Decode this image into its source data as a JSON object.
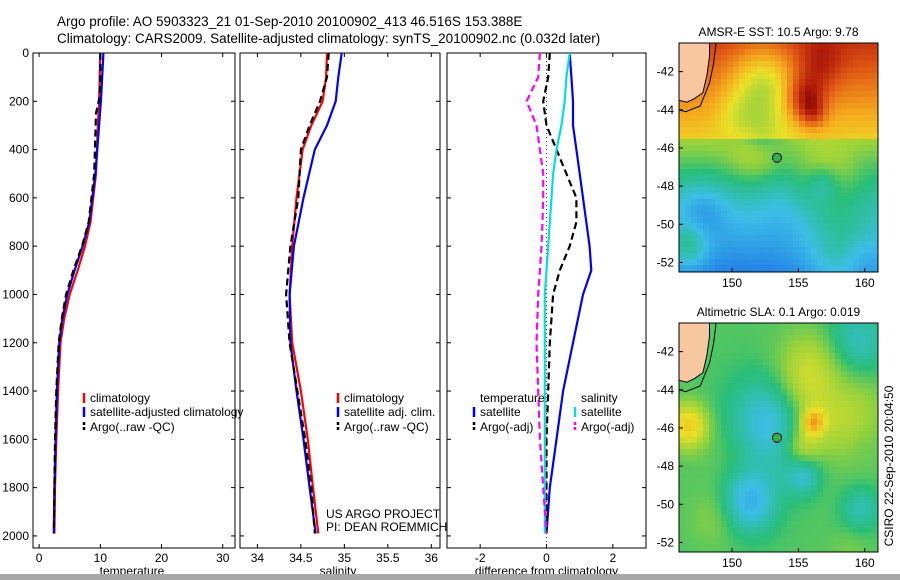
{
  "header": {
    "line1": "Argo profile: AO 5903323_21 01-Sep-2010 20100902_413 46.516S 153.388E",
    "line2": "Climatology: CARS2009. Satellite-adjusted climatology: synTS_20100902.nc (0.032d later)"
  },
  "colors": {
    "climatology": "#ff0000",
    "satellite": "#0000ff",
    "argo": "#000000",
    "salinity_satellite": "#00e0e0",
    "salinity_argo": "#ff00ff",
    "land": "#f7c8a0"
  },
  "chart_data": [
    {
      "type": "line",
      "name": "temperature-panel",
      "xlabel": "temperature",
      "ylabel": "",
      "xlim": [
        -1,
        32
      ],
      "ylim": [
        2050,
        0
      ],
      "xticks": [
        "0",
        "10",
        "20",
        "30"
      ],
      "yticks": [
        "0",
        "200",
        "400",
        "600",
        "800",
        "1000",
        "1200",
        "1400",
        "1600",
        "1800",
        "2000"
      ],
      "legend": [
        "climatology",
        "satellite-adjusted climatology",
        "Argo(..raw -QC)"
      ],
      "series": [
        {
          "name": "climatology",
          "color": "red",
          "dash": "solid",
          "x": [
            10.0,
            9.9,
            9.8,
            9.6,
            9.3,
            8.4,
            7.5,
            6.3,
            5.0,
            4.1,
            3.5,
            3.1,
            2.8,
            2.6,
            2.5
          ],
          "y": [
            0,
            100,
            200,
            300,
            500,
            700,
            800,
            900,
            1000,
            1100,
            1200,
            1400,
            1600,
            1800,
            1990
          ]
        },
        {
          "name": "satellite-adjusted climatology",
          "color": "blue",
          "dash": "solid",
          "x": [
            10.5,
            10.3,
            10.1,
            9.8,
            9.2,
            8.2,
            7.1,
            5.8,
            4.6,
            3.8,
            3.3,
            2.9,
            2.7,
            2.5,
            2.4
          ],
          "y": [
            0,
            100,
            200,
            300,
            500,
            700,
            800,
            900,
            1000,
            1100,
            1200,
            1400,
            1600,
            1800,
            1990
          ]
        },
        {
          "name": "Argo(..raw -QC)",
          "color": "black",
          "dash": "dashed",
          "x": [
            10.0,
            10.0,
            9.9,
            9.3,
            9.0,
            8.1,
            7.0,
            5.6,
            4.4,
            3.7,
            3.2,
            2.8,
            2.6,
            2.5,
            2.4
          ],
          "y": [
            0,
            100,
            180,
            250,
            500,
            700,
            800,
            900,
            1000,
            1100,
            1200,
            1400,
            1600,
            1800,
            1990
          ]
        }
      ]
    },
    {
      "type": "line",
      "name": "salinity-panel",
      "xlabel": "salinity",
      "ylabel": "",
      "xlim": [
        33.8,
        36.1
      ],
      "ylim": [
        2050,
        0
      ],
      "xticks": [
        "34",
        "34.5",
        "35",
        "35.5",
        "36"
      ],
      "legend": [
        "climatology",
        "satellite adj. clim.",
        "Argo(..raw -QC)"
      ],
      "annotations": [
        "US ARGO PROJECT",
        "PI: DEAN ROEMMICH"
      ],
      "series": [
        {
          "name": "climatology",
          "color": "red",
          "dash": "solid",
          "x": [
            34.8,
            34.79,
            34.75,
            34.62,
            34.52,
            34.45,
            34.4,
            34.37,
            34.4,
            34.5,
            34.58,
            34.64,
            34.7
          ],
          "y": [
            0,
            100,
            200,
            300,
            400,
            600,
            800,
            1000,
            1200,
            1400,
            1600,
            1800,
            1990
          ]
        },
        {
          "name": "satellite adj. clim.",
          "color": "blue",
          "dash": "solid",
          "x": [
            34.97,
            34.93,
            34.9,
            34.8,
            34.66,
            34.53,
            34.42,
            34.37,
            34.38,
            34.45,
            34.53,
            34.6,
            34.67
          ],
          "y": [
            0,
            100,
            200,
            300,
            400,
            600,
            800,
            1000,
            1200,
            1400,
            1600,
            1800,
            1990
          ]
        },
        {
          "name": "Argo(..raw -QC)",
          "color": "black",
          "dash": "dashed",
          "x": [
            34.82,
            34.8,
            34.72,
            34.6,
            34.5,
            34.47,
            34.38,
            34.33,
            34.37,
            34.46,
            34.55,
            34.62,
            34.66
          ],
          "y": [
            0,
            100,
            200,
            300,
            400,
            600,
            800,
            1000,
            1200,
            1400,
            1600,
            1800,
            1990
          ]
        }
      ]
    },
    {
      "type": "line",
      "name": "difference-panel",
      "xlabel": "difference from climatology",
      "ylabel": "",
      "xlim": [
        -3,
        3
      ],
      "ylim": [
        2050,
        0
      ],
      "xticks": [
        "-2",
        "0",
        "2"
      ],
      "legend": [
        "temperature",
        "satellite",
        "Argo(-adj)",
        "salinity",
        "satellite",
        "Argo(-adj)"
      ],
      "series": [
        {
          "name": "temperature satellite",
          "color": "blue",
          "dash": "solid",
          "x": [
            0.7,
            0.75,
            0.8,
            0.8,
            0.9,
            1.0,
            1.1,
            1.2,
            1.3,
            1.35,
            1.1,
            0.8,
            0.5,
            0.3,
            0.1,
            0.0
          ],
          "y": [
            0,
            100,
            200,
            300,
            400,
            500,
            600,
            700,
            800,
            900,
            1000,
            1200,
            1400,
            1600,
            1800,
            1990
          ]
        },
        {
          "name": "temperature Argo(-adj)",
          "color": "black",
          "dash": "dashed",
          "x": [
            0.1,
            0.05,
            -0.1,
            0.0,
            0.3,
            0.6,
            0.9,
            0.9,
            0.7,
            0.4,
            0.2,
            0.1,
            0.05,
            0.0,
            0.0,
            0.0
          ],
          "y": [
            0,
            100,
            200,
            300,
            400,
            500,
            600,
            700,
            800,
            900,
            1000,
            1200,
            1400,
            1600,
            1800,
            1990
          ]
        },
        {
          "name": "salinity satellite",
          "color": "cyan",
          "dash": "solid",
          "x": [
            0.7,
            0.6,
            0.55,
            0.45,
            0.3,
            0.2,
            0.15,
            0.1,
            0.05,
            0.0,
            -0.05,
            -0.05,
            -0.05,
            -0.05,
            -0.05,
            -0.05
          ],
          "y": [
            0,
            100,
            200,
            300,
            400,
            500,
            600,
            700,
            800,
            900,
            1000,
            1200,
            1400,
            1600,
            1800,
            1990
          ]
        },
        {
          "name": "salinity Argo(-adj)",
          "color": "magenta",
          "dash": "dashed",
          "x": [
            -0.2,
            -0.25,
            -0.6,
            -0.3,
            -0.2,
            -0.1,
            -0.1,
            -0.12,
            -0.15,
            -0.2,
            -0.25,
            -0.3,
            -0.25,
            -0.2,
            -0.1,
            0.0
          ],
          "y": [
            0,
            100,
            200,
            300,
            400,
            500,
            600,
            700,
            800,
            900,
            1000,
            1200,
            1400,
            1600,
            1800,
            1990
          ]
        }
      ]
    },
    {
      "type": "heatmap",
      "name": "sst-map",
      "title": "AMSR-E SST: 10.5 Argo: 9.78",
      "xticks": [
        "150",
        "155",
        "160"
      ],
      "yticks": [
        "-42",
        "-44",
        "-46",
        "-48",
        "-50",
        "-52"
      ],
      "xlim": [
        146,
        161
      ],
      "ylim": [
        -52.5,
        -40.5
      ],
      "point": {
        "lon": 153.388,
        "lat": -46.516
      }
    },
    {
      "type": "heatmap",
      "name": "sla-map",
      "title": "Altimetric SLA: 0.1 Argo: 0.019",
      "xticks": [
        "150",
        "155",
        "160"
      ],
      "yticks": [
        "-42",
        "-44",
        "-46",
        "-48",
        "-50",
        "-52"
      ],
      "xlim": [
        146,
        161
      ],
      "ylim": [
        -52.5,
        -40.5
      ],
      "point": {
        "lon": 153.388,
        "lat": -46.516
      }
    }
  ],
  "side_stamp": "CSIRO 22-Sep-2010 20:04:50"
}
